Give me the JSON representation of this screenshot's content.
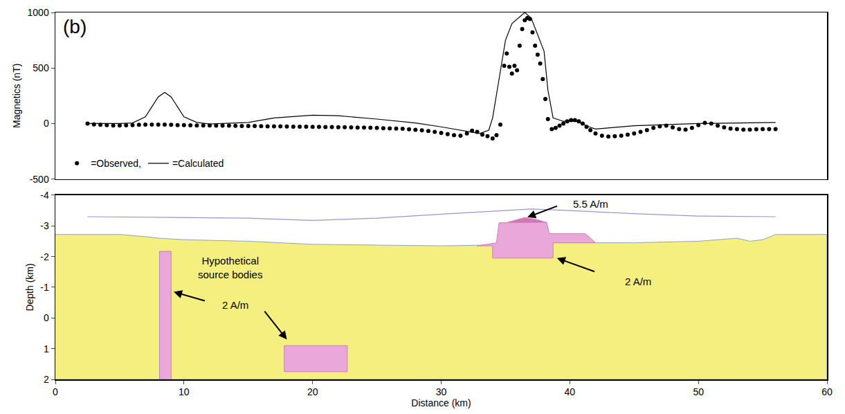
{
  "chart_data": [
    {
      "type": "scatter",
      "panel_label": "(b)",
      "y_label": "Magnetics (nT)",
      "xlim": [
        0,
        60
      ],
      "xticks": [
        0,
        10,
        20,
        30,
        40,
        50,
        60
      ],
      "ylim": [
        -500,
        1000
      ],
      "yticks": [
        -500,
        0,
        500,
        1000
      ],
      "tick_labels": "y",
      "grid": false,
      "legend": "lower left",
      "series": [
        {
          "name": "=Observed,",
          "type": "scatter",
          "marker": "circle",
          "color": "#000000",
          "x": [
            2.5,
            3,
            3.5,
            4,
            4.5,
            5,
            5.5,
            6,
            6.5,
            7,
            7.5,
            8,
            8.5,
            9,
            9.5,
            10,
            10.5,
            11,
            11.5,
            12,
            12.5,
            13,
            13.5,
            14,
            14.5,
            15,
            15.5,
            16,
            16.5,
            17,
            17.5,
            18,
            18.5,
            19,
            19.5,
            20,
            20.5,
            21,
            21.5,
            22,
            22.5,
            23,
            23.5,
            24,
            24.5,
            25,
            25.5,
            26,
            26.5,
            27,
            27.5,
            28,
            28.5,
            29,
            29.5,
            30,
            30.5,
            31,
            31.5,
            32,
            32.4,
            32.8,
            33.2,
            33.6,
            34,
            34.3,
            34.6,
            34.9,
            35.1,
            35.3,
            35.5,
            35.7,
            35.9,
            36.1,
            36.3,
            36.5,
            36.7,
            36.9,
            37.1,
            37.3,
            37.5,
            37.7,
            37.9,
            38.1,
            38.3,
            38.6,
            38.9,
            39.2,
            39.5,
            39.8,
            40.1,
            40.4,
            40.7,
            41,
            41.3,
            41.6,
            42,
            42.5,
            43,
            43.5,
            44,
            44.5,
            45,
            45.5,
            46,
            46.5,
            47,
            47.5,
            48,
            48.5,
            49,
            49.5,
            50,
            50.5,
            51,
            51.5,
            52,
            52.5,
            53,
            53.5,
            54,
            54.5,
            55,
            55.5,
            56
          ],
          "values": [
            0,
            -8,
            -12,
            -15,
            -17,
            -18,
            -16,
            -14,
            -12,
            -10,
            -10,
            -10,
            -10,
            -12,
            -14,
            -15,
            -16,
            -17,
            -18,
            -18,
            -19,
            -20,
            -20,
            -21,
            -22,
            -22,
            -23,
            -24,
            -25,
            -25,
            -26,
            -27,
            -28,
            -28,
            -29,
            -30,
            -30,
            -31,
            -32,
            -33,
            -34,
            -35,
            -36,
            -37,
            -38,
            -40,
            -42,
            -44,
            -46,
            -48,
            -52,
            -56,
            -62,
            -68,
            -76,
            -85,
            -95,
            -105,
            -110,
            -90,
            -65,
            -75,
            -100,
            -115,
            -135,
            -105,
            -10,
            520,
            630,
            510,
            450,
            520,
            480,
            700,
            850,
            930,
            950,
            940,
            820,
            700,
            620,
            540,
            400,
            220,
            40,
            -50,
            -40,
            -20,
            0,
            20,
            30,
            30,
            20,
            0,
            -30,
            -60,
            -90,
            -110,
            -118,
            -115,
            -110,
            -100,
            -90,
            -75,
            -60,
            -40,
            -25,
            -20,
            -35,
            -50,
            -55,
            -40,
            -15,
            5,
            0,
            -20,
            -35,
            -45,
            -50,
            -55,
            -55,
            -52,
            -50,
            -50,
            -50
          ]
        },
        {
          "name": "=Calculated",
          "type": "line",
          "line_style": "solid",
          "color": "#000000",
          "x": [
            2.5,
            5,
            6,
            7,
            7.5,
            8,
            8.5,
            9,
            9.5,
            10,
            11,
            12,
            15,
            17,
            20,
            22,
            25,
            28,
            30,
            32,
            33,
            33.7,
            34,
            34.5,
            35,
            35.5,
            36.5,
            37,
            37.5,
            38,
            38.3,
            38.7,
            39.5,
            40.5,
            41.5,
            42,
            45,
            50,
            56
          ],
          "values": [
            0,
            0,
            5,
            60,
            150,
            240,
            280,
            240,
            150,
            60,
            10,
            -5,
            10,
            50,
            75,
            70,
            40,
            5,
            -30,
            -70,
            -90,
            -60,
            50,
            400,
            750,
            900,
            1000,
            950,
            800,
            650,
            300,
            50,
            20,
            20,
            -30,
            -50,
            -20,
            0,
            10
          ]
        }
      ]
    },
    {
      "type": "cross_section",
      "x_label": "Distance (km)",
      "y_label": "Depth (km)",
      "xlim": [
        0,
        60
      ],
      "xticks": [
        0,
        10,
        20,
        30,
        40,
        50,
        60
      ],
      "ylim": [
        2,
        -4
      ],
      "yticks": [
        -4,
        -3,
        -2,
        -1,
        0,
        1,
        2
      ],
      "grid": false,
      "series": [
        {
          "type": "area",
          "color": "#f5ef80",
          "x": [
            0,
            5,
            7,
            8,
            10,
            15,
            20,
            25,
            30,
            33,
            38.7,
            42,
            45,
            50,
            53,
            54,
            55,
            56,
            60
          ],
          "values": [
            -2.72,
            -2.72,
            -2.65,
            -2.6,
            -2.55,
            -2.5,
            -2.4,
            -2.37,
            -2.35,
            -2.37,
            -2.45,
            -2.45,
            -2.45,
            -2.5,
            -2.6,
            -2.5,
            -2.55,
            -2.72,
            -2.72
          ]
        },
        {
          "type": "polygon",
          "color": "#eaa8da",
          "x": [
            32.8,
            34.3,
            34.5,
            38.2,
            38.4,
            41.2,
            42,
            38.7,
            38.7,
            34,
            34,
            32.8
          ],
          "values": [
            -2.35,
            -2.45,
            -3.1,
            -3.12,
            -2.75,
            -2.75,
            -2.45,
            -2.45,
            -1.95,
            -1.95,
            -2.35,
            -2.35
          ]
        },
        {
          "type": "polygon",
          "color": "#d873bb",
          "x": [
            35.2,
            36.5,
            37.5,
            38.1,
            35.2
          ],
          "values": [
            -3.12,
            -3.27,
            -3.2,
            -3.12,
            -3.12
          ]
        },
        {
          "type": "polygon",
          "color": "#eaa8da",
          "x": [
            8.1,
            9,
            9,
            8.1,
            8.1
          ],
          "values": [
            -2.17,
            -2.17,
            2,
            2,
            -2.17
          ]
        },
        {
          "type": "polygon",
          "color": "#eaa8da",
          "x": [
            17.8,
            22.7,
            22.7,
            17.8,
            17.8
          ],
          "values": [
            0.9,
            0.9,
            1.75,
            1.75,
            0.9
          ]
        },
        {
          "type": "line",
          "line_style": "solid",
          "color": "#9b94d0",
          "x": [
            2.5,
            10,
            15,
            20,
            25,
            30,
            35,
            37,
            40,
            45,
            50,
            56
          ],
          "values": [
            -3.3,
            -3.28,
            -3.25,
            -3.18,
            -3.25,
            -3.38,
            -3.5,
            -3.55,
            -3.5,
            -3.4,
            -3.32,
            -3.3
          ]
        }
      ],
      "annotations": [
        {
          "text": "5.5 A/m",
          "x": 41.6,
          "y": -3.72,
          "arrows": [
            [
              39.1,
              -3.66,
              36.7,
              -3.28
            ]
          ]
        },
        {
          "text": "2 A/m",
          "x": 45.3,
          "y": -1.2,
          "arrows": [
            [
              42,
              -1.5,
              39,
              -1.95
            ]
          ]
        },
        {
          "text": "Hypothetical source bodies",
          "x": 13.6,
          "y": -1.65,
          "arrows": []
        },
        {
          "text": "2 A/m",
          "x": 14,
          "y": -0.43,
          "arrows": [
            [
              11.7,
              -0.55,
              9.2,
              -0.85
            ],
            [
              16.2,
              -0.25,
              18,
              0.7
            ]
          ]
        }
      ]
    }
  ]
}
